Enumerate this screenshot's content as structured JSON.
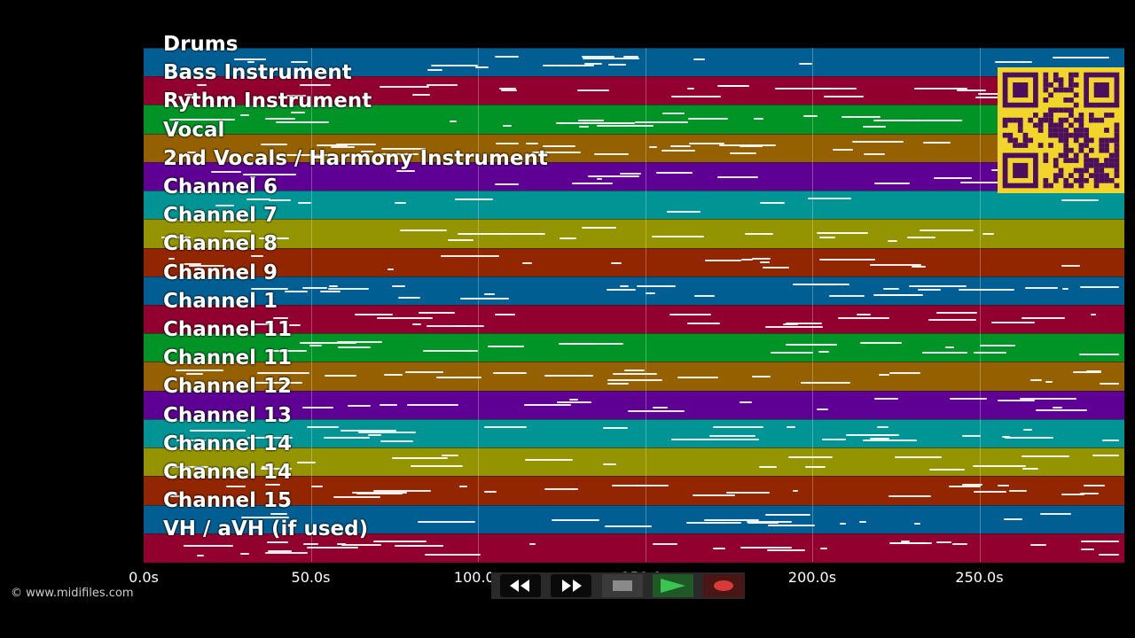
{
  "credit": "© www.midifiles.com",
  "timeline": {
    "ticks": [
      "0.0s",
      "50.0s",
      "100.0s",
      "150.0s",
      "200.0s",
      "250.0s"
    ]
  },
  "tracks": [
    {
      "label": "Drums",
      "color": "#005e93"
    },
    {
      "label": "Bass Instrument",
      "color": "#92002f"
    },
    {
      "label": "Rythm Instrument",
      "color": "#009427"
    },
    {
      "label": "Vocal",
      "color": "#946000"
    },
    {
      "label": "2nd Vocals / Harmony Instrument",
      "color": "#5e0093"
    },
    {
      "label": "Channel 6",
      "color": "#009494"
    },
    {
      "label": "Channel 7",
      "color": "#949400"
    },
    {
      "label": "Channel 8",
      "color": "#922600"
    },
    {
      "label": "Channel 9",
      "color": "#005e93"
    },
    {
      "label": "Channel 1",
      "color": "#92002f"
    },
    {
      "label": "Channel 11",
      "color": "#009427"
    },
    {
      "label": "Channel 11",
      "color": "#946000"
    },
    {
      "label": "Channel 12",
      "color": "#5e0093"
    },
    {
      "label": "Channel 13",
      "color": "#009494"
    },
    {
      "label": "Channel 14",
      "color": "#949400"
    },
    {
      "label": "Channel 14",
      "color": "#922600"
    },
    {
      "label": "Channel 15",
      "color": "#005e93"
    },
    {
      "label": "VH / aVH (if used)",
      "color": "#92002f"
    }
  ],
  "qr_colors": {
    "fg": "#4b0f5e",
    "bg": "#f2d52a"
  },
  "controls": {
    "rewind_icon": "rewind-icon",
    "forward_icon": "fast-forward-icon",
    "stop_icon": "stop-icon",
    "play_icon": "play-icon",
    "record_icon": "record-icon"
  }
}
